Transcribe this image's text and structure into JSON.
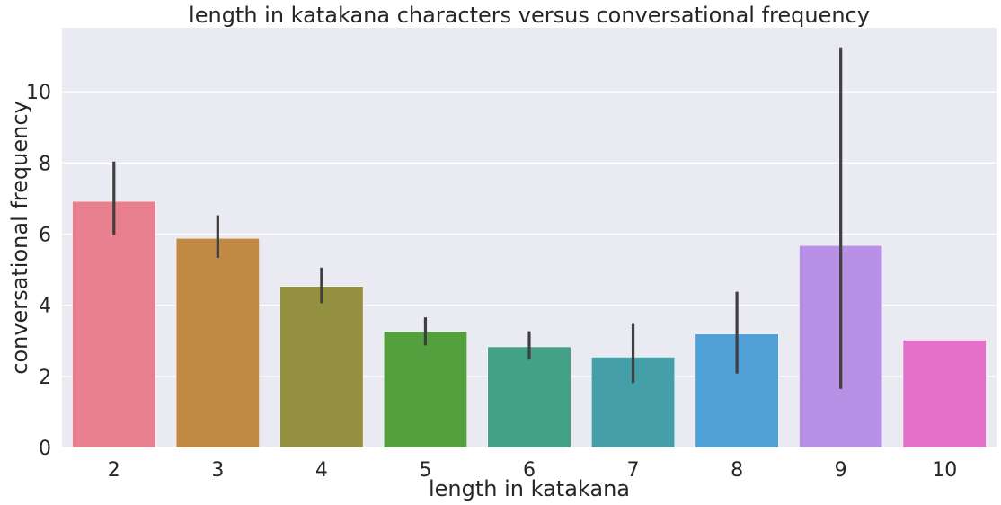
{
  "chart_data": {
    "type": "bar",
    "title": "length in katakana characters versus conversational frequency",
    "xlabel": "length in katakana",
    "ylabel": "conversational frequency",
    "categories": [
      "2",
      "3",
      "4",
      "5",
      "6",
      "7",
      "8",
      "9",
      "10"
    ],
    "values": [
      6.92,
      5.88,
      4.53,
      3.26,
      2.83,
      2.54,
      3.19,
      5.68,
      3.02
    ],
    "error_low": [
      5.98,
      5.33,
      4.06,
      2.87,
      2.47,
      1.81,
      2.08,
      1.65,
      3.02
    ],
    "error_high": [
      8.04,
      6.53,
      5.06,
      3.66,
      3.27,
      3.47,
      4.38,
      11.25,
      3.02
    ],
    "colors": [
      "#e8808f",
      "#c18944",
      "#93913f",
      "#55a03e",
      "#43a186",
      "#459fa9",
      "#51a0d8",
      "#b890e5",
      "#e371ca"
    ],
    "yticks": [
      0,
      2,
      4,
      6,
      8,
      10
    ],
    "ylim": [
      0,
      11.8
    ],
    "grid": true,
    "background_color": "#eaeaf2",
    "error_bar_color": "#3f3f3f"
  }
}
